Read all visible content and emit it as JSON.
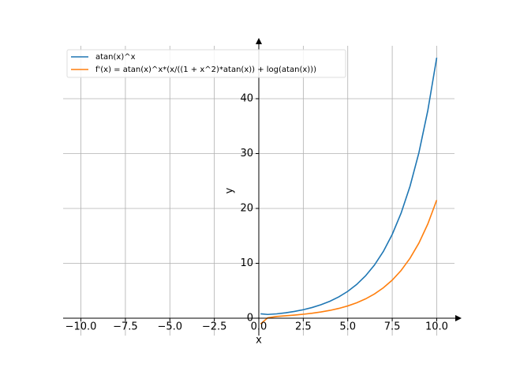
{
  "chart_data": {
    "type": "line",
    "x": [
      0.1,
      0.5,
      1,
      1.5,
      2,
      2.5,
      3,
      3.5,
      4,
      4.5,
      5,
      5.5,
      6,
      6.5,
      7,
      7.5,
      8,
      8.5,
      9,
      9.5,
      10
    ],
    "series": [
      {
        "name": "atan(x)^x",
        "color": "#1f77b4",
        "values": [
          0.794,
          0.681,
          0.785,
          0.974,
          1.226,
          1.546,
          1.949,
          2.455,
          3.09,
          3.887,
          4.887,
          6.14,
          7.714,
          9.687,
          12.163,
          15.27,
          19.16,
          24.05,
          30.17,
          37.85,
          47.47
        ]
      },
      {
        "name": "f'(x) = atan(x)^x*(x/((1 + x^2)*atan(x)) + log(atan(x)))",
        "color": "#ff7f0e",
        "values": [
          -1.042,
          0.064,
          0.31,
          0.441,
          0.568,
          0.717,
          0.901,
          1.132,
          1.42,
          1.781,
          2.235,
          2.803,
          3.517,
          4.411,
          5.533,
          6.94,
          8.703,
          10.92,
          13.69,
          17.17,
          21.52
        ]
      }
    ],
    "x_label": "x",
    "y_label": "y",
    "xlim": [
      -11,
      11
    ],
    "ylim": [
      -3.17,
      49.64
    ],
    "xticks": [
      {
        "value": -10,
        "label": "−10.0"
      },
      {
        "value": -7.5,
        "label": "−7.5"
      },
      {
        "value": -5,
        "label": "−5.0"
      },
      {
        "value": -2.5,
        "label": "−2.5"
      },
      {
        "value": 0,
        "label": "0.0"
      },
      {
        "value": 2.5,
        "label": "2.5"
      },
      {
        "value": 5,
        "label": "5.0"
      },
      {
        "value": 7.5,
        "label": "7.5"
      },
      {
        "value": 10,
        "label": "10.0"
      }
    ],
    "yticks": [
      0,
      10,
      20,
      30,
      40
    ],
    "grid": true,
    "legend": "upper left"
  }
}
